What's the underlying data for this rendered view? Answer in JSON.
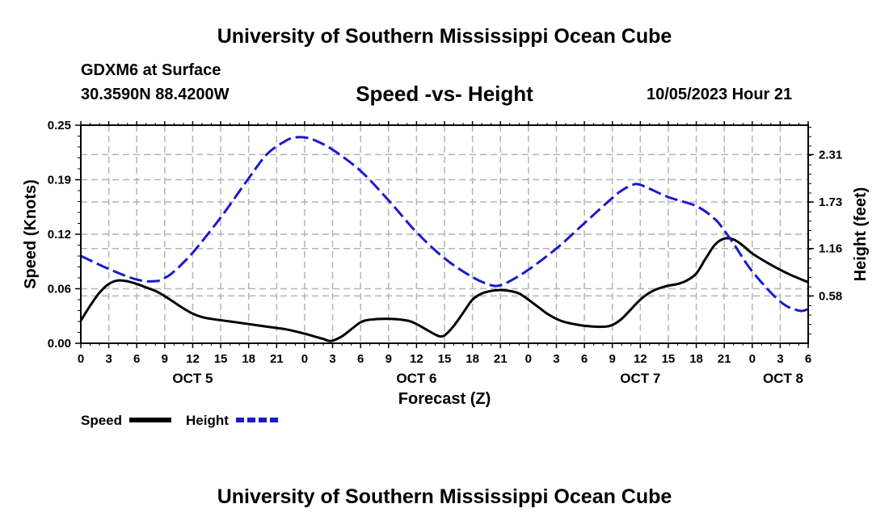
{
  "header": {
    "title": "University of Southern Mississippi Ocean Cube",
    "station": "GDXM6 at Surface",
    "coords": "30.3590N  88.4200W",
    "chart_title": "Speed -vs- Height",
    "datetime": "10/05/2023 Hour 21"
  },
  "footer": {
    "title": "University of Southern Mississippi Ocean Cube"
  },
  "colors": {
    "speed": "#000000",
    "height": "#1a1acc",
    "grid": "#b4b4b4"
  },
  "chart_data": {
    "type": "line",
    "title": "Speed -vs- Height",
    "xlabel": "Forecast (Z)",
    "ylabel": "Speed (Knots)",
    "y2label": "Height (feet)",
    "xlim": [
      0,
      78
    ],
    "ylim": [
      0,
      0.25
    ],
    "y2lim": [
      0,
      2.67
    ],
    "x_ticks": [
      0,
      3,
      6,
      9,
      12,
      15,
      18,
      21,
      24,
      27,
      30,
      33,
      36,
      39,
      42,
      45,
      48,
      51,
      54,
      57,
      60,
      63,
      66,
      69,
      72,
      75,
      78
    ],
    "x_tick_labels": [
      "0",
      "3",
      "6",
      "9",
      "12",
      "15",
      "18",
      "21",
      "0",
      "3",
      "6",
      "9",
      "12",
      "15",
      "18",
      "21",
      "0",
      "3",
      "6",
      "9",
      "12",
      "15",
      "18",
      "21",
      "0",
      "3",
      "6"
    ],
    "date_labels": [
      {
        "x": 12,
        "label": "OCT 5"
      },
      {
        "x": 36,
        "label": "OCT 6"
      },
      {
        "x": 60,
        "label": "OCT 7"
      },
      {
        "x": 78,
        "label": "OCT 8"
      }
    ],
    "y_ticks": [
      0,
      0.0625,
      0.125,
      0.1875,
      0.25
    ],
    "y_tick_labels": [
      "0.00",
      "0.06",
      "0.12",
      "0.19",
      "0.25"
    ],
    "y2_ticks": [
      0.58,
      1.16,
      1.73,
      2.31
    ],
    "y2_tick_labels": [
      "0.58",
      "1.16",
      "1.73",
      "2.31"
    ],
    "grid": true,
    "series": [
      {
        "name": "Speed",
        "axis": "left",
        "style": "solid",
        "x": [
          0,
          1,
          2,
          3,
          4,
          5,
          6,
          7,
          8,
          9,
          10,
          11,
          12,
          13,
          14,
          16,
          18,
          20,
          22,
          24,
          25,
          26,
          26.5,
          27,
          28,
          29,
          30,
          31,
          33,
          35,
          36,
          37,
          38,
          38.5,
          39,
          40,
          41,
          42,
          43,
          44,
          45,
          46,
          47,
          48,
          49,
          50,
          51,
          52,
          54,
          56,
          57,
          58,
          59,
          60,
          61,
          62,
          63,
          64,
          65,
          66,
          67,
          68,
          69,
          70,
          71,
          72,
          74,
          76,
          78
        ],
        "values": [
          0.026,
          0.043,
          0.058,
          0.068,
          0.072,
          0.071,
          0.068,
          0.064,
          0.06,
          0.054,
          0.047,
          0.04,
          0.034,
          0.03,
          0.028,
          0.025,
          0.022,
          0.019,
          0.016,
          0.011,
          0.008,
          0.005,
          0.003,
          0.003,
          0.008,
          0.016,
          0.024,
          0.027,
          0.028,
          0.026,
          0.022,
          0.016,
          0.01,
          0.008,
          0.009,
          0.02,
          0.035,
          0.05,
          0.057,
          0.06,
          0.061,
          0.06,
          0.057,
          0.05,
          0.042,
          0.034,
          0.028,
          0.024,
          0.02,
          0.019,
          0.021,
          0.028,
          0.039,
          0.05,
          0.058,
          0.063,
          0.066,
          0.068,
          0.072,
          0.08,
          0.097,
          0.113,
          0.12,
          0.119,
          0.112,
          0.103,
          0.09,
          0.079,
          0.07
        ]
      },
      {
        "name": "Height",
        "axis": "right",
        "style": "dashed",
        "x": [
          0,
          3,
          6,
          8,
          9,
          10,
          12,
          15,
          18,
          20,
          22,
          23,
          24,
          25,
          27,
          30,
          33,
          36,
          39,
          42,
          44,
          45,
          46,
          48,
          51,
          54,
          57,
          58,
          59,
          60,
          63,
          66,
          68,
          69,
          70,
          72,
          75,
          77,
          78
        ],
        "values": [
          1.07,
          0.91,
          0.78,
          0.76,
          0.8,
          0.88,
          1.11,
          1.54,
          2.02,
          2.32,
          2.48,
          2.52,
          2.52,
          2.49,
          2.37,
          2.11,
          1.75,
          1.36,
          1.04,
          0.81,
          0.71,
          0.71,
          0.76,
          0.9,
          1.16,
          1.47,
          1.78,
          1.87,
          1.93,
          1.94,
          1.79,
          1.68,
          1.52,
          1.38,
          1.22,
          0.88,
          0.51,
          0.4,
          0.42
        ]
      }
    ]
  },
  "legend": {
    "position": "bottom-left",
    "items": [
      {
        "label": "Speed",
        "series": "speed"
      },
      {
        "label": "Height",
        "series": "height"
      }
    ]
  }
}
